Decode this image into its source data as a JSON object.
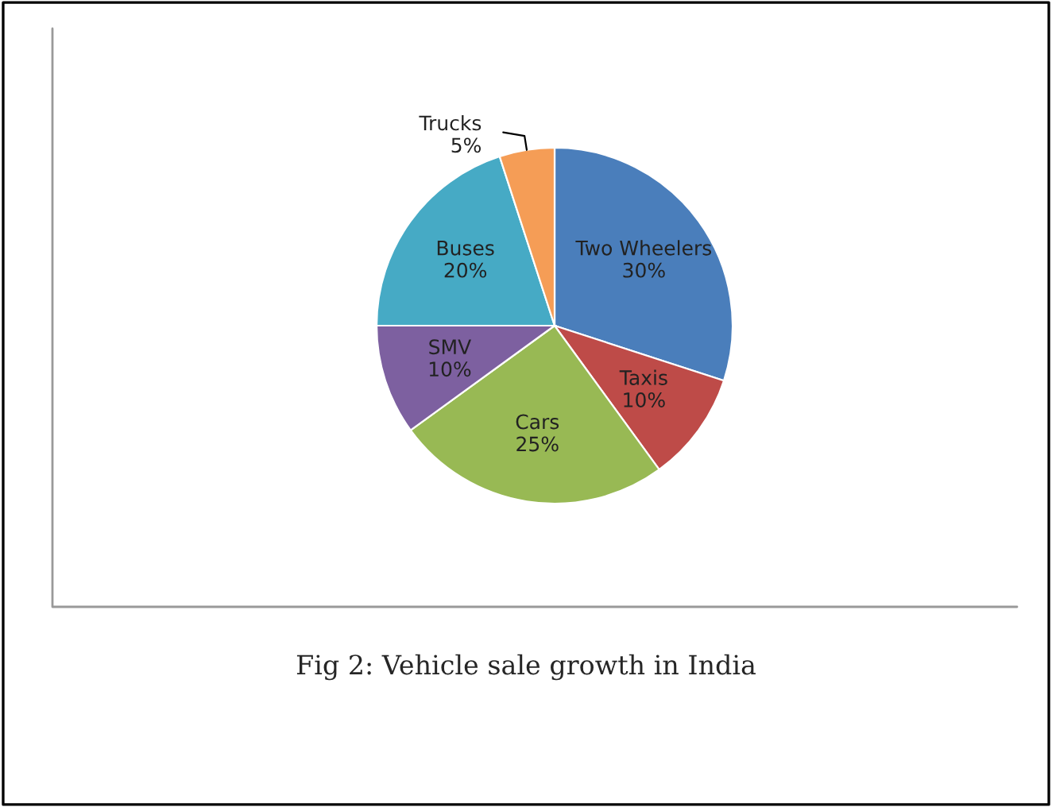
{
  "chart_data": {
    "type": "pie",
    "categories": [
      "Two Wheelers",
      "Taxis",
      "Cars",
      "SMV",
      "Buses",
      "Trucks"
    ],
    "values": [
      30,
      10,
      25,
      10,
      20,
      5
    ],
    "value_labels": [
      "30%",
      "10%",
      "25%",
      "10%",
      "20%",
      "5%"
    ],
    "colors": [
      "#4a7ebb",
      "#be4b48",
      "#98b954",
      "#7d60a0",
      "#46aac5",
      "#f59d56"
    ],
    "annotations": [
      "Fig 2: Vehicle sale growth in India"
    ],
    "legend": false
  }
}
